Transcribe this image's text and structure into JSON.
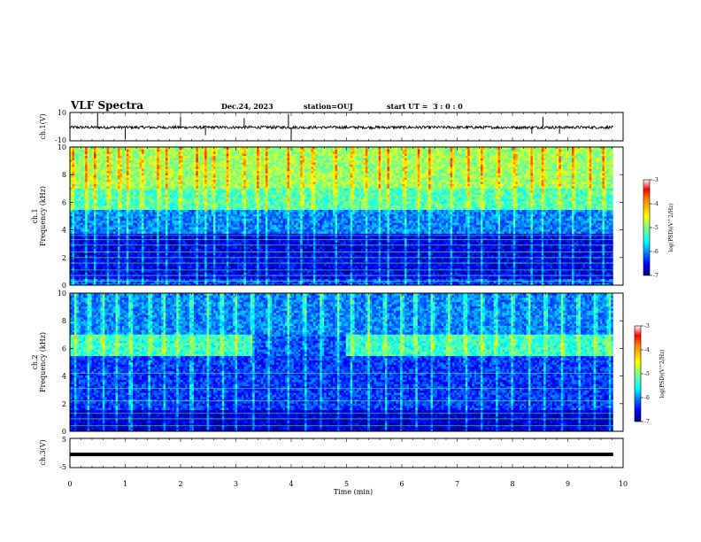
{
  "header": {
    "title": "VLF Spectra",
    "date": "Dec.24, 2023",
    "station": "station=OUJ",
    "start_ut": "start UT =  3 : 0 : 0"
  },
  "chart_data": [
    {
      "panel": "ch1-waveform",
      "type": "line",
      "ylabel": "ch.1(V)",
      "ylim": [
        -10,
        10
      ],
      "yticks": [
        "10",
        "-10"
      ],
      "xlim": [
        0,
        10
      ],
      "x_end": 9.82,
      "baseline": -0.5,
      "noise_amplitude": 2.0,
      "spikes": [
        {
          "x": 0.5,
          "y": 9.5
        },
        {
          "x": 1.0,
          "y": -8.5
        },
        {
          "x": 2.0,
          "y": 7.0
        },
        {
          "x": 2.45,
          "y": -6.0
        },
        {
          "x": 3.15,
          "y": 6.0
        },
        {
          "x": 3.95,
          "y": 9.0
        },
        {
          "x": 4.0,
          "y": -9.5
        },
        {
          "x": 8.35,
          "y": -5.0
        },
        {
          "x": 8.55,
          "y": 7.0
        },
        {
          "x": 8.85,
          "y": -5.0
        }
      ]
    },
    {
      "panel": "ch1-spectrogram",
      "type": "heatmap",
      "ylabel": "Frequency (kHz)",
      "channel_label": "ch.1",
      "ylim": [
        0,
        10
      ],
      "yticks": [
        "0",
        "2",
        "4",
        "6",
        "8",
        "10"
      ],
      "xlim": [
        0,
        10
      ],
      "x_end": 9.82,
      "colorbar": {
        "label": "log(PSD)(V^2/Hz)",
        "range": [
          -7,
          -3
        ],
        "ticks": [
          "-3",
          "-4",
          "-5",
          "-6",
          "-7"
        ]
      },
      "bands": [
        {
          "f_from": 0.0,
          "f_to": 0.5,
          "level": -6.2
        },
        {
          "f_from": 0.5,
          "f_to": 3.8,
          "level": -6.6
        },
        {
          "f_from": 3.8,
          "f_to": 5.5,
          "level": -6.0
        },
        {
          "f_from": 5.5,
          "f_to": 7.0,
          "level": -5.2
        },
        {
          "f_from": 7.0,
          "f_to": 10.0,
          "level": -4.9
        }
      ],
      "burst_times_min": [
        0.05,
        0.3,
        0.45,
        0.7,
        0.9,
        1.05,
        1.3,
        1.6,
        1.75,
        2.0,
        2.3,
        2.45,
        2.6,
        2.85,
        3.15,
        3.4,
        3.55,
        3.95,
        4.2,
        4.4,
        4.8,
        5.1,
        5.35,
        5.6,
        5.75,
        6.05,
        6.3,
        6.5,
        6.9,
        7.2,
        7.45,
        7.75,
        8.05,
        8.35,
        8.55,
        8.85,
        9.1,
        9.4,
        9.65
      ]
    },
    {
      "panel": "ch2-spectrogram",
      "type": "heatmap",
      "ylabel": "Frequency (kHz)",
      "channel_label": "ch.2",
      "ylim": [
        0,
        10
      ],
      "yticks": [
        "0",
        "2",
        "4",
        "6",
        "8",
        "10"
      ],
      "xlim": [
        0,
        10
      ],
      "x_end": 9.82,
      "colorbar": {
        "label": "log(PSD)(V^2/Hz)",
        "range": [
          -7,
          -3
        ],
        "ticks": [
          "-3",
          "-4",
          "-5",
          "-6",
          "-7"
        ]
      },
      "bands": [
        {
          "f_from": 0.0,
          "f_to": 1.5,
          "level": -6.7
        },
        {
          "f_from": 1.5,
          "f_to": 5.5,
          "level": -6.3
        },
        {
          "f_from": 5.5,
          "f_to": 7.0,
          "level": -5.3
        },
        {
          "f_from": 7.0,
          "f_to": 10.0,
          "level": -6.0
        }
      ],
      "band_gap_min": [
        3.3,
        5.0
      ],
      "burst_times_min": [
        0.1,
        0.35,
        0.6,
        0.85,
        1.1,
        1.45,
        1.7,
        1.95,
        2.2,
        2.5,
        2.75,
        3.0,
        3.3,
        3.6,
        3.95,
        4.25,
        4.55,
        4.85,
        5.1,
        5.4,
        5.7,
        6.0,
        6.25,
        6.55,
        6.85,
        7.15,
        7.45,
        7.7,
        8.0,
        8.3,
        8.6,
        8.9,
        9.2,
        9.5,
        9.75
      ]
    },
    {
      "panel": "ch3-waveform",
      "type": "line",
      "ylabel": "ch.3(V)",
      "ylim": [
        -5,
        5
      ],
      "yticks": [
        "5",
        "-5"
      ],
      "xlim": [
        0,
        10
      ],
      "x_end": 9.82,
      "level": -0.5
    }
  ],
  "x_axis": {
    "label": "Time (min)",
    "ticks": [
      "0",
      "1",
      "2",
      "3",
      "4",
      "5",
      "6",
      "7",
      "8",
      "9",
      "10"
    ]
  },
  "colors": {
    "jet": [
      "#00007f",
      "#0000ff",
      "#0080ff",
      "#00ffff",
      "#80ff80",
      "#ffff00",
      "#ff8000",
      "#ff0000",
      "#7f0000"
    ]
  }
}
